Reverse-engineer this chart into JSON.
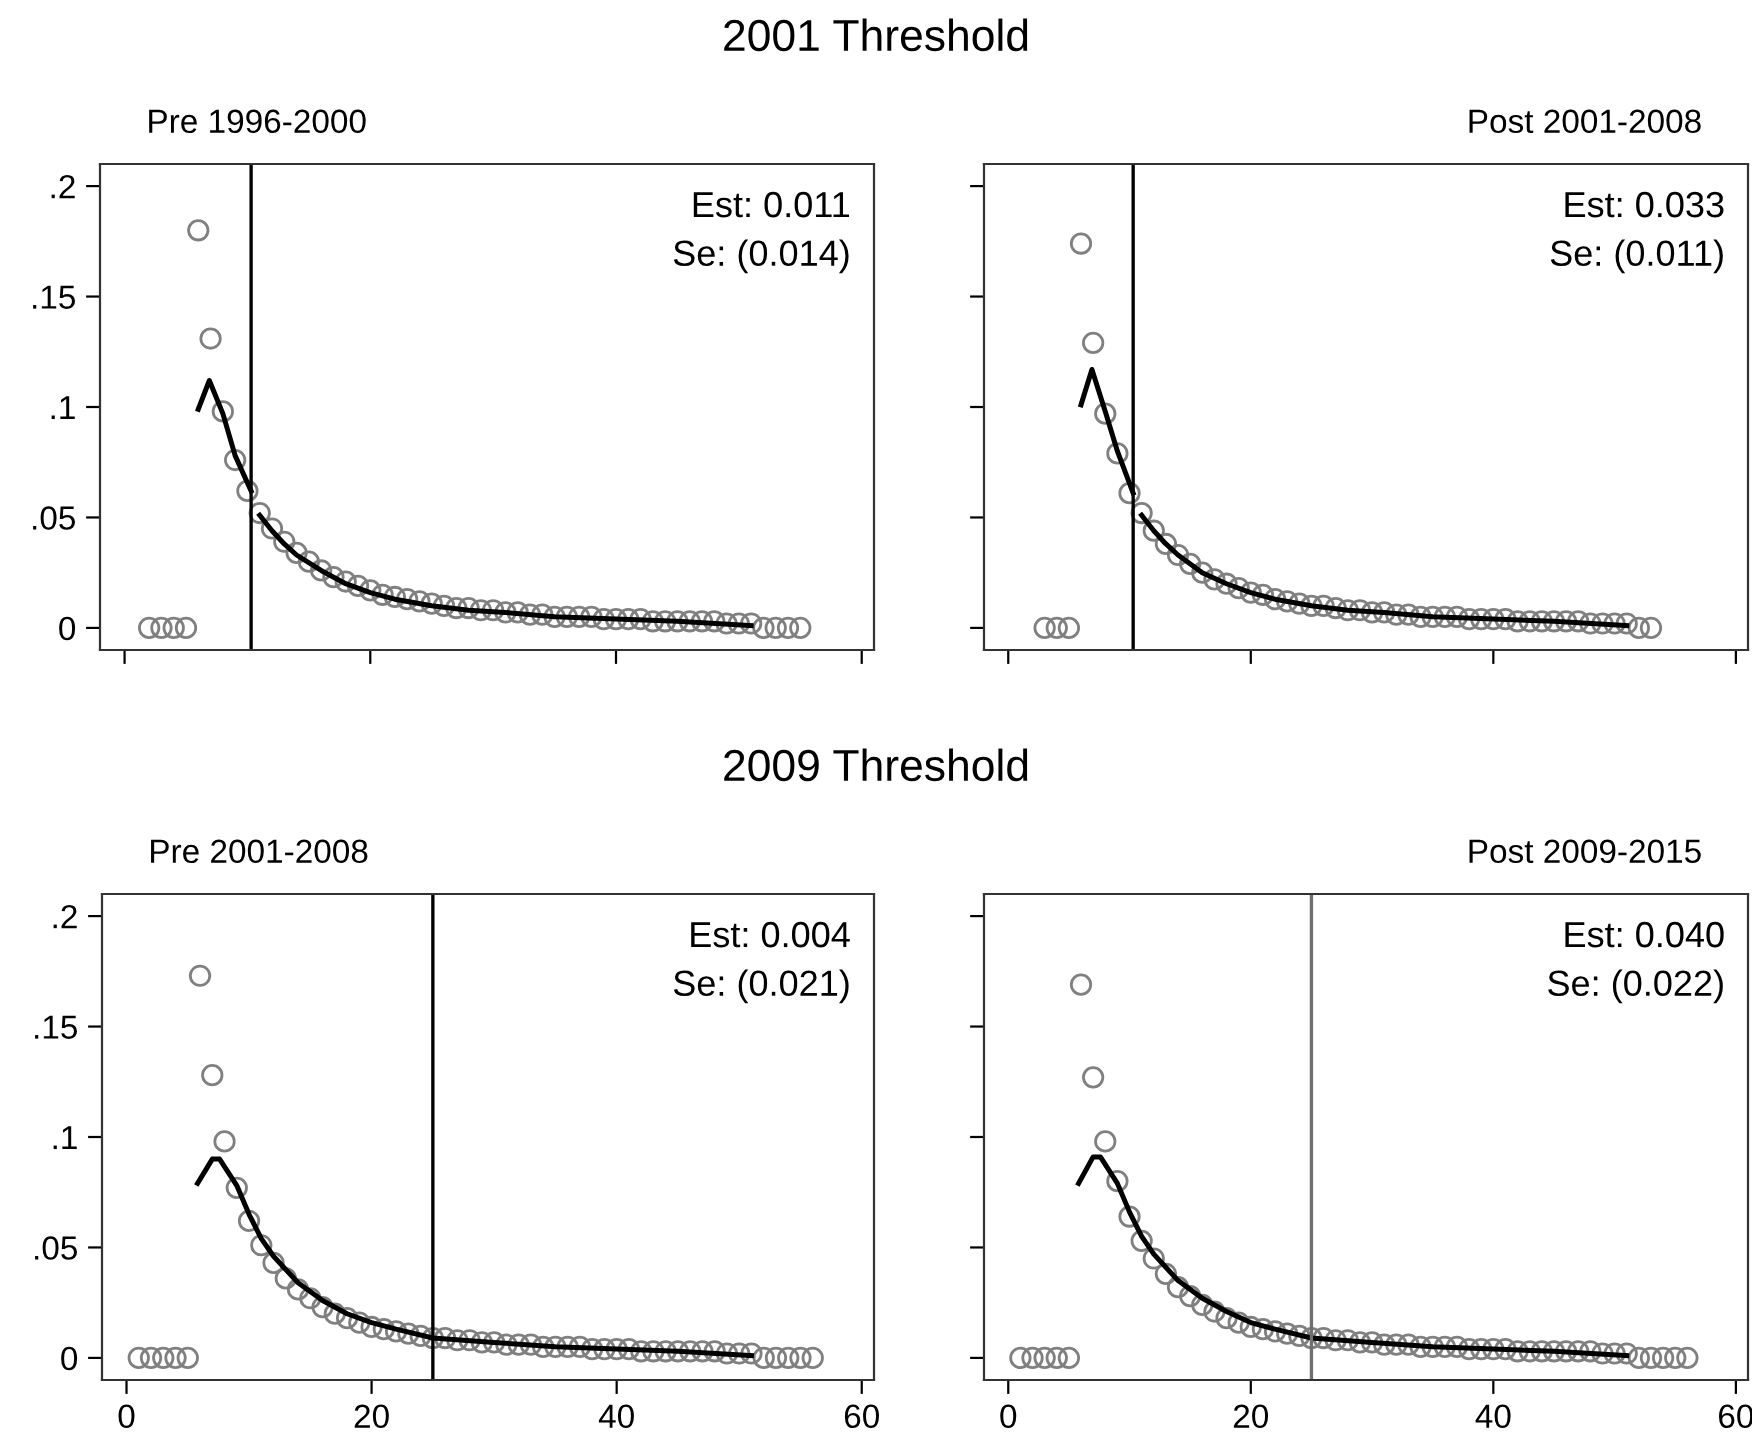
{
  "chart_data": [
    {
      "type": "scatter",
      "title": "2001 Threshold",
      "subtitle": "Pre 1996-2000",
      "annotations": [
        "Est: 0.011",
        "Se: (0.014)"
      ],
      "xlim": [
        -2,
        61
      ],
      "ylim": [
        -0.01,
        0.21
      ],
      "xticks": [
        0,
        20,
        40,
        60
      ],
      "yticks": [
        {
          "value": 0,
          "label": "0"
        },
        {
          "value": 0.05,
          "label": ".05"
        },
        {
          "value": 0.1,
          "label": ".1"
        },
        {
          "value": 0.15,
          "label": ".15"
        },
        {
          "value": 0.2,
          "label": ".2"
        }
      ],
      "tick_labels": "y",
      "ref_lines": [
        {
          "axis": "x",
          "value": 10.3,
          "color": "#000000"
        }
      ],
      "series": [
        {
          "marker": "circle",
          "color": "#808080",
          "x": [
            2,
            3,
            4,
            5,
            6,
            7,
            8,
            9,
            10,
            11,
            12,
            13,
            14,
            15,
            16,
            17,
            18,
            19,
            20,
            21,
            22,
            23,
            24,
            25,
            26,
            27,
            28,
            29,
            30,
            31,
            32,
            33,
            34,
            35,
            36,
            37,
            38,
            39,
            40,
            41,
            42,
            43,
            44,
            45,
            46,
            47,
            48,
            49,
            50,
            51,
            52,
            53,
            54,
            55
          ],
          "values": [
            0,
            0,
            0,
            0,
            0.18,
            0.131,
            0.098,
            0.076,
            0.062,
            0.052,
            0.045,
            0.039,
            0.034,
            0.03,
            0.026,
            0.023,
            0.021,
            0.019,
            0.017,
            0.015,
            0.014,
            0.013,
            0.012,
            0.011,
            0.01,
            0.009,
            0.009,
            0.008,
            0.008,
            0.007,
            0.007,
            0.006,
            0.006,
            0.005,
            0.005,
            0.005,
            0.005,
            0.004,
            0.004,
            0.004,
            0.004,
            0.003,
            0.003,
            0.003,
            0.003,
            0.003,
            0.003,
            0.002,
            0.002,
            0.002,
            0,
            0,
            0,
            0
          ]
        },
        {
          "type": "line",
          "color": "#000000",
          "x": [
            6,
            6.9,
            8,
            9,
            10.3,
            10.5,
            11,
            12,
            13,
            14,
            16,
            18,
            20,
            22,
            25,
            28,
            31,
            35,
            40,
            45,
            51
          ],
          "values": [
            0.099,
            0.112,
            0.097,
            0.078,
            0.062,
            null,
            0.051,
            0.044,
            0.038,
            0.033,
            0.026,
            0.02,
            0.016,
            0.013,
            0.01,
            0.008,
            0.007,
            0.005,
            0.004,
            0.003,
            0.001
          ]
        }
      ]
    },
    {
      "type": "scatter",
      "subtitle": "Post 2001-2008",
      "annotations": [
        "Est: 0.033",
        "Se: (0.011)"
      ],
      "xlim": [
        -2,
        61
      ],
      "ylim": [
        -0.01,
        0.21
      ],
      "xticks": [
        0,
        20,
        40,
        60
      ],
      "yticks": [
        {
          "value": 0,
          "label": null
        },
        {
          "value": 0.05,
          "label": null
        },
        {
          "value": 0.1,
          "label": null
        },
        {
          "value": 0.15,
          "label": null
        },
        {
          "value": 0.2,
          "label": null
        }
      ],
      "tick_labels": false,
      "ref_lines": [
        {
          "axis": "x",
          "value": 10.3,
          "color": "#000000"
        }
      ],
      "series": [
        {
          "marker": "circle",
          "color": "#808080",
          "x": [
            3,
            4,
            5,
            6,
            7,
            8,
            9,
            10,
            11,
            12,
            13,
            14,
            15,
            16,
            17,
            18,
            19,
            20,
            21,
            22,
            23,
            24,
            25,
            26,
            27,
            28,
            29,
            30,
            31,
            32,
            33,
            34,
            35,
            36,
            37,
            38,
            39,
            40,
            41,
            42,
            43,
            44,
            45,
            46,
            47,
            48,
            49,
            50,
            51,
            52,
            53
          ],
          "values": [
            0,
            0,
            0,
            0.174,
            0.129,
            0.097,
            0.079,
            0.061,
            0.052,
            0.044,
            0.038,
            0.033,
            0.029,
            0.025,
            0.022,
            0.02,
            0.018,
            0.016,
            0.015,
            0.013,
            0.012,
            0.011,
            0.01,
            0.01,
            0.009,
            0.008,
            0.008,
            0.007,
            0.007,
            0.006,
            0.006,
            0.005,
            0.005,
            0.005,
            0.005,
            0.004,
            0.004,
            0.004,
            0.004,
            0.003,
            0.003,
            0.003,
            0.003,
            0.003,
            0.003,
            0.002,
            0.002,
            0.002,
            0.002,
            0,
            0
          ]
        },
        {
          "type": "line",
          "color": "#000000",
          "x": [
            6,
            6.9,
            8,
            9,
            10.3,
            10.5,
            11,
            12,
            13,
            14,
            16,
            18,
            20,
            22,
            25,
            28,
            31,
            35,
            40,
            45,
            51
          ],
          "values": [
            0.101,
            0.117,
            0.098,
            0.08,
            0.061,
            null,
            0.051,
            0.044,
            0.038,
            0.033,
            0.025,
            0.02,
            0.016,
            0.013,
            0.01,
            0.008,
            0.007,
            0.005,
            0.004,
            0.003,
            0.001
          ]
        }
      ]
    },
    {
      "type": "scatter",
      "title": "2009 Threshold",
      "subtitle": "Pre 2001-2008",
      "annotations": [
        "Est: 0.004",
        "Se: (0.021)"
      ],
      "xlim": [
        -2,
        61
      ],
      "ylim": [
        -0.01,
        0.21
      ],
      "xticks": [
        0,
        20,
        40,
        60
      ],
      "yticks": [
        {
          "value": 0,
          "label": "0"
        },
        {
          "value": 0.05,
          "label": ".05"
        },
        {
          "value": 0.1,
          "label": ".1"
        },
        {
          "value": 0.15,
          "label": ".15"
        },
        {
          "value": 0.2,
          "label": ".2"
        }
      ],
      "ref_lines": [
        {
          "axis": "x",
          "value": 25,
          "color": "#000000"
        }
      ],
      "series": [
        {
          "marker": "circle",
          "color": "#808080",
          "x": [
            1,
            2,
            3,
            4,
            5,
            6,
            7,
            8,
            9,
            10,
            11,
            12,
            13,
            14,
            15,
            16,
            17,
            18,
            19,
            20,
            21,
            22,
            23,
            24,
            25,
            26,
            27,
            28,
            29,
            30,
            31,
            32,
            33,
            34,
            35,
            36,
            37,
            38,
            39,
            40,
            41,
            42,
            43,
            44,
            45,
            46,
            47,
            48,
            49,
            50,
            51,
            52,
            53,
            54,
            55,
            56
          ],
          "values": [
            0,
            0,
            0,
            0,
            0,
            0.173,
            0.128,
            0.098,
            0.077,
            0.062,
            0.051,
            0.043,
            0.036,
            0.031,
            0.027,
            0.023,
            0.02,
            0.018,
            0.016,
            0.014,
            0.013,
            0.012,
            0.011,
            0.01,
            0.009,
            0.009,
            0.008,
            0.008,
            0.007,
            0.007,
            0.006,
            0.006,
            0.006,
            0.005,
            0.005,
            0.005,
            0.005,
            0.004,
            0.004,
            0.004,
            0.004,
            0.003,
            0.003,
            0.003,
            0.003,
            0.003,
            0.003,
            0.003,
            0.002,
            0.002,
            0.002,
            0,
            0,
            0,
            0,
            0
          ]
        },
        {
          "type": "line",
          "color": "#000000",
          "x": [
            5.8,
            7,
            7.6,
            9,
            10,
            11,
            12,
            14,
            16,
            18,
            20,
            22,
            25,
            30,
            35,
            40,
            45,
            51
          ],
          "values": [
            0.079,
            0.09,
            0.09,
            0.078,
            0.065,
            0.054,
            0.046,
            0.034,
            0.026,
            0.02,
            0.016,
            0.013,
            0.009,
            0.007,
            0.005,
            0.004,
            0.003,
            0.001
          ]
        }
      ]
    },
    {
      "type": "scatter",
      "subtitle": "Post 2009-2015",
      "annotations": [
        "Est: 0.040",
        "Se: (0.022)"
      ],
      "xlim": [
        -2,
        61
      ],
      "ylim": [
        -0.01,
        0.21
      ],
      "xticks": [
        0,
        20,
        40,
        60
      ],
      "yticks": [
        {
          "value": 0,
          "label": null
        },
        {
          "value": 0.05,
          "label": null
        },
        {
          "value": 0.1,
          "label": null
        },
        {
          "value": 0.15,
          "label": null
        },
        {
          "value": 0.2,
          "label": null
        }
      ],
      "tick_labels": "x",
      "ref_lines": [
        {
          "axis": "x",
          "value": 25,
          "color": "#707070"
        }
      ],
      "series": [
        {
          "marker": "circle",
          "color": "#808080",
          "x": [
            1,
            2,
            3,
            4,
            5,
            6,
            7,
            8,
            9,
            10,
            11,
            12,
            13,
            14,
            15,
            16,
            17,
            18,
            19,
            20,
            21,
            22,
            23,
            24,
            25,
            26,
            27,
            28,
            29,
            30,
            31,
            32,
            33,
            34,
            35,
            36,
            37,
            38,
            39,
            40,
            41,
            42,
            43,
            44,
            45,
            46,
            47,
            48,
            49,
            50,
            51,
            52,
            53,
            54,
            55,
            56
          ],
          "values": [
            0,
            0,
            0,
            0,
            0,
            0.169,
            0.127,
            0.098,
            0.08,
            0.064,
            0.053,
            0.045,
            0.038,
            0.032,
            0.028,
            0.024,
            0.021,
            0.018,
            0.016,
            0.014,
            0.013,
            0.012,
            0.011,
            0.01,
            0.009,
            0.009,
            0.008,
            0.008,
            0.007,
            0.007,
            0.006,
            0.006,
            0.006,
            0.005,
            0.005,
            0.005,
            0.005,
            0.004,
            0.004,
            0.004,
            0.004,
            0.003,
            0.003,
            0.003,
            0.003,
            0.003,
            0.003,
            0.003,
            0.002,
            0.002,
            0.002,
            0,
            0,
            0,
            0,
            0
          ]
        },
        {
          "type": "line",
          "color": "#000000",
          "x": [
            5.8,
            7,
            7.6,
            9,
            10,
            11,
            12,
            14,
            16,
            18,
            20,
            22,
            25,
            30,
            35,
            40,
            45,
            51
          ],
          "values": [
            0.079,
            0.091,
            0.091,
            0.079,
            0.066,
            0.055,
            0.047,
            0.035,
            0.027,
            0.021,
            0.016,
            0.013,
            0.009,
            0.007,
            0.005,
            0.004,
            0.003,
            0.001
          ]
        }
      ]
    }
  ]
}
